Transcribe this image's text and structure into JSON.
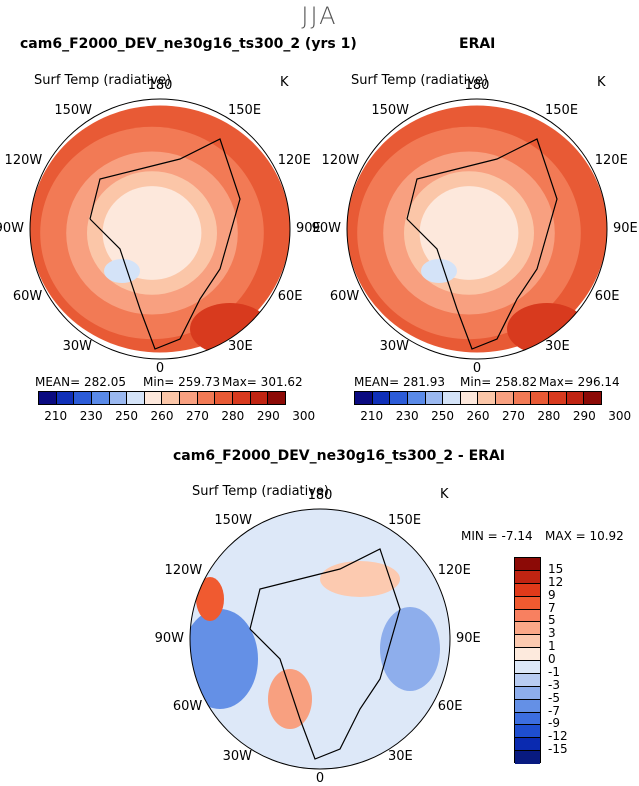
{
  "season": "JJA",
  "panels": [
    {
      "title": "cam6_F2000_DEV_ne30g16_ts300_2 (yrs 1)",
      "variable": "Surf Temp (radiative)",
      "units": "K",
      "mean_label": "MEAN= 282.05",
      "min_label": "Min= 259.73",
      "max_label": "Max= 301.62"
    },
    {
      "title": "ERAI",
      "variable": "Surf Temp (radiative)",
      "units": "K",
      "mean_label": "MEAN= 281.93",
      "min_label": "Min= 258.82",
      "max_label": "Max= 296.14"
    },
    {
      "title": "cam6_F2000_DEV_ne30g16_ts300_2 - ERAI",
      "variable": "Surf Temp (radiative)",
      "units": "K",
      "min_label": "MIN = -7.14",
      "max_label": "MAX = 10.92"
    }
  ],
  "longitude_labels": {
    "top": "180",
    "upper_left": "150W",
    "upper_right": "150E",
    "left_upper": "120W",
    "right_upper": "120E",
    "left": "90W",
    "right": "90E",
    "left_lower": "60W",
    "right_lower": "60E",
    "lower_left": "30W",
    "lower_right": "30E",
    "bottom": "0"
  },
  "abs_colorbar": {
    "ticks": [
      "210",
      "230",
      "250",
      "260",
      "270",
      "280",
      "290",
      "300"
    ],
    "colors": [
      "#0a0a80",
      "#1030b8",
      "#2c5cd8",
      "#5a8ae8",
      "#9ab8f0",
      "#d4e3f8",
      "#fde8dc",
      "#fbc6a8",
      "#f8a080",
      "#f27a55",
      "#e85a35",
      "#d83a1e",
      "#c02412",
      "#8c0a06"
    ]
  },
  "diff_colorbar": {
    "ticks": [
      "15",
      "12",
      "9",
      "7",
      "5",
      "3",
      "1",
      "0",
      "-1",
      "-3",
      "-5",
      "-7",
      "-9",
      "-12",
      "-15"
    ],
    "colors": [
      "#8c0a06",
      "#c02412",
      "#e03a1a",
      "#f05a30",
      "#f88060",
      "#fba888",
      "#fccab0",
      "#fdeadd",
      "#dde8f8",
      "#b8ccf2",
      "#8eaeec",
      "#6490e6",
      "#3c6ee0",
      "#1e4ed0",
      "#0a2ab0",
      "#081a80"
    ]
  }
}
